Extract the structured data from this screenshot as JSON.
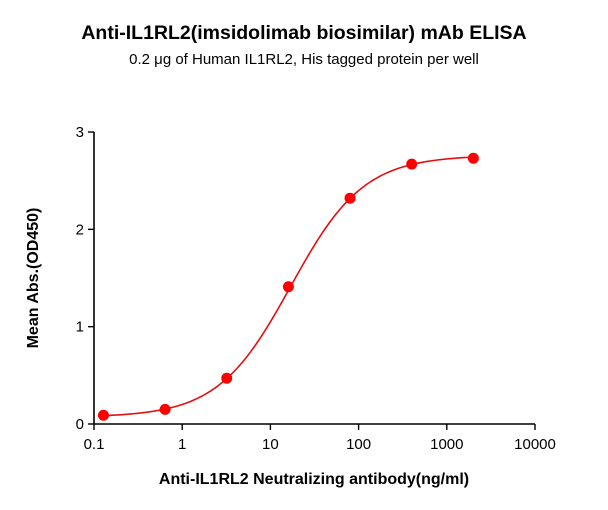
{
  "header": {
    "title": "Anti-IL1RL2(imsidolimab biosimilar) mAb ELISA",
    "subtitle": "0.2 μg of Human IL1RL2, His tagged protein per well"
  },
  "colors": {
    "series": "#ff0000",
    "curve": "#e01010",
    "axis": "#000000"
  },
  "chart_data": {
    "type": "scatter",
    "title": "Anti-IL1RL2(imsidolimab biosimilar) mAb ELISA",
    "subtitle": "0.2 μg of Human IL1RL2, His tagged protein per well",
    "xlabel": "Anti-IL1RL2 Neutralizing antibody(ng/ml)",
    "ylabel": "Mean Abs.(OD450)",
    "xscale": "log",
    "xlim": [
      0.1,
      10000
    ],
    "ylim": [
      0,
      3
    ],
    "x_ticks": [
      "0.1",
      "1",
      "10",
      "100",
      "1000",
      "10000"
    ],
    "y_ticks": [
      "0",
      "1",
      "2",
      "3"
    ],
    "grid": false,
    "legend": null,
    "series": [
      {
        "name": "Mean Abs.(OD450)",
        "x": [
          0.128,
          0.64,
          3.2,
          16,
          80,
          400,
          2000
        ],
        "y": [
          0.09,
          0.15,
          0.47,
          1.41,
          2.32,
          2.67,
          2.73
        ],
        "fit": "4-parameter logistic curve"
      }
    ]
  }
}
